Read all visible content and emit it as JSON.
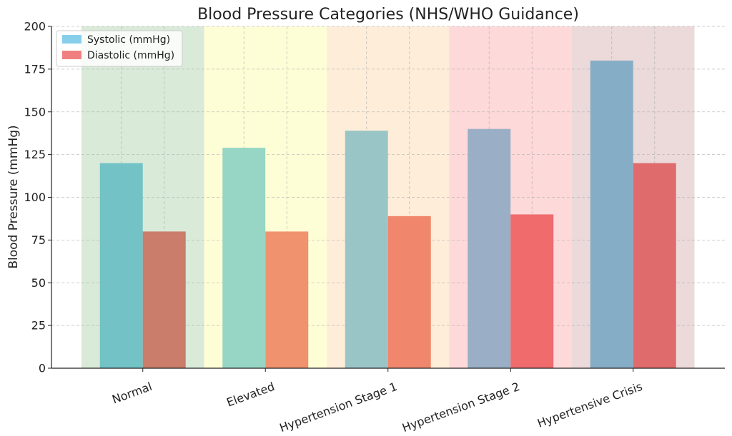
{
  "chart_data": {
    "type": "bar",
    "title": "Blood Pressure Categories (NHS/WHO Guidance)",
    "xlabel": "",
    "ylabel": "Blood Pressure (mmHg)",
    "ylim": [
      0,
      200
    ],
    "yticks": [
      0,
      25,
      50,
      75,
      100,
      125,
      150,
      175,
      200
    ],
    "categories": [
      "Normal",
      "Elevated",
      "Hypertension Stage 1",
      "Hypertension Stage 2",
      "Hypertensive Crisis"
    ],
    "category_background_colors": [
      "#d9ead9",
      "#fefed6",
      "#feeed9",
      "#fed9da",
      "#ecd9da"
    ],
    "series": [
      {
        "name": "Systolic (mmHg)",
        "values": [
          120,
          129,
          139,
          140,
          180
        ],
        "legend_color": "#87ceeb",
        "bar_colors": [
          "#72c2c6",
          "#97d6c5",
          "#9ac5c6",
          "#9aafc5",
          "#86adc6"
        ]
      },
      {
        "name": "Diastolic (mmHg)",
        "values": [
          80,
          80,
          89,
          90,
          120
        ],
        "legend_color": "#f08080",
        "bar_colors": [
          "#ca7d6a",
          "#f0926d",
          "#f0876d",
          "#ef6b6c",
          "#e06b6c"
        ]
      }
    ],
    "grid": true,
    "legend_position": "top-left"
  }
}
